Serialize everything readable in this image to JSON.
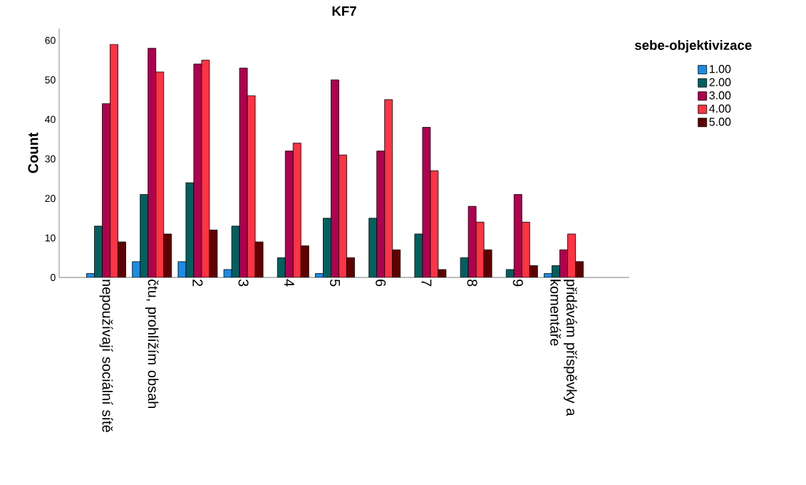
{
  "chart_data": {
    "type": "bar",
    "title": "KF7",
    "ylabel": "Count",
    "legend_title": "sebe-objektivizace",
    "categories": [
      "nepoužívají sociální sítě",
      "čtu, prohlížím obsah",
      "2",
      "3",
      "4",
      "5",
      "6",
      "7",
      "8",
      "9",
      "přidávám příspěvky a komentáře"
    ],
    "series": [
      {
        "name": "1.00",
        "color": "#1a8ce6",
        "values": [
          1,
          4,
          4,
          2,
          null,
          1,
          null,
          null,
          null,
          null,
          1
        ]
      },
      {
        "name": "2.00",
        "color": "#006060",
        "values": [
          13,
          21,
          24,
          13,
          5,
          15,
          15,
          11,
          5,
          2,
          3
        ]
      },
      {
        "name": "3.00",
        "color": "#b0004f",
        "values": [
          44,
          58,
          54,
          53,
          32,
          50,
          32,
          38,
          18,
          21,
          7
        ]
      },
      {
        "name": "4.00",
        "color": "#ff3344",
        "values": [
          59,
          52,
          55,
          46,
          34,
          31,
          45,
          27,
          14,
          14,
          11
        ]
      },
      {
        "name": "5.00",
        "color": "#600000",
        "values": [
          9,
          11,
          12,
          9,
          8,
          5,
          7,
          2,
          7,
          3,
          4
        ]
      }
    ],
    "ylim": [
      0,
      63
    ],
    "yticks": [
      0,
      10,
      20,
      30,
      40,
      50,
      60
    ],
    "grid": false,
    "legend": "right"
  }
}
